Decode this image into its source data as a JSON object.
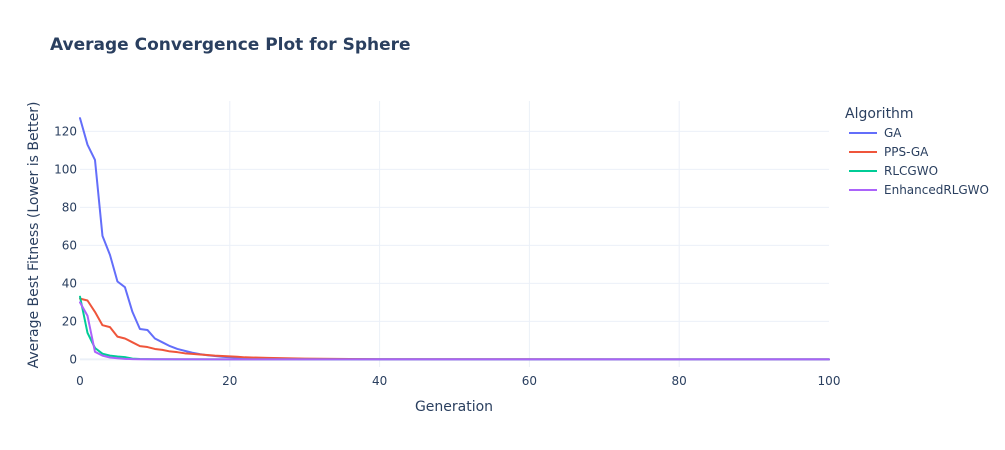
{
  "chart_data": {
    "type": "line",
    "title": "Average Convergence Plot for Sphere",
    "xlabel": "Generation",
    "ylabel": "Average Best Fitness (Lower is Better)",
    "xlim": [
      0,
      100
    ],
    "ylim": [
      -4,
      136
    ],
    "x_ticks": [
      0,
      20,
      40,
      60,
      80,
      100
    ],
    "y_ticks": [
      0,
      20,
      40,
      60,
      80,
      100,
      120
    ],
    "grid": true,
    "legend_title": "Algorithm",
    "legend_placement": "top-right-outside",
    "series": [
      {
        "name": "GA",
        "color": "#636efa",
        "points": [
          [
            0,
            127
          ],
          [
            1,
            113
          ],
          [
            2,
            105
          ],
          [
            3,
            65
          ],
          [
            4,
            55
          ],
          [
            5,
            41
          ],
          [
            6,
            38
          ],
          [
            7,
            25
          ],
          [
            8,
            16
          ],
          [
            9,
            15.5
          ],
          [
            10,
            11
          ],
          [
            11,
            9
          ],
          [
            12,
            7
          ],
          [
            13,
            5.5
          ],
          [
            14,
            4.5
          ],
          [
            15,
            3.5
          ],
          [
            16,
            2.8
          ],
          [
            17,
            2.2
          ],
          [
            18,
            1.8
          ],
          [
            19,
            1.4
          ],
          [
            20,
            1.1
          ],
          [
            22,
            0.7
          ],
          [
            25,
            0.4
          ],
          [
            30,
            0.15
          ],
          [
            40,
            0.05
          ],
          [
            60,
            0.02
          ],
          [
            100,
            0
          ]
        ]
      },
      {
        "name": "PPS-GA",
        "color": "#ef553b",
        "points": [
          [
            0,
            32
          ],
          [
            1,
            31
          ],
          [
            2,
            25
          ],
          [
            3,
            18
          ],
          [
            4,
            17
          ],
          [
            5,
            12
          ],
          [
            6,
            11
          ],
          [
            7,
            9
          ],
          [
            8,
            7
          ],
          [
            9,
            6.5
          ],
          [
            10,
            5.5
          ],
          [
            11,
            5
          ],
          [
            12,
            4.2
          ],
          [
            13,
            3.8
          ],
          [
            14,
            3.2
          ],
          [
            15,
            2.9
          ],
          [
            16,
            2.6
          ],
          [
            17,
            2.3
          ],
          [
            18,
            2.0
          ],
          [
            19,
            1.8
          ],
          [
            20,
            1.6
          ],
          [
            21,
            1.4
          ],
          [
            22,
            1.1
          ],
          [
            25,
            0.8
          ],
          [
            30,
            0.4
          ],
          [
            40,
            0.1
          ],
          [
            60,
            0.05
          ],
          [
            100,
            0.02
          ]
        ]
      },
      {
        "name": "RLCGWO",
        "color": "#00cc96",
        "points": [
          [
            0,
            33
          ],
          [
            1,
            14
          ],
          [
            2,
            6
          ],
          [
            3,
            3
          ],
          [
            4,
            2
          ],
          [
            5,
            1.5
          ],
          [
            6,
            1.2
          ],
          [
            7,
            0.4
          ],
          [
            8,
            0.2
          ],
          [
            10,
            0.1
          ],
          [
            20,
            0.02
          ],
          [
            100,
            0
          ]
        ]
      },
      {
        "name": "EnhancedRLGWO",
        "color": "#ab63fa",
        "points": [
          [
            0,
            30
          ],
          [
            1,
            23
          ],
          [
            2,
            4
          ],
          [
            3,
            2
          ],
          [
            4,
            1
          ],
          [
            5,
            0.6
          ],
          [
            6,
            0.3
          ],
          [
            7,
            0.15
          ],
          [
            8,
            0.1
          ],
          [
            10,
            0.05
          ],
          [
            20,
            0.01
          ],
          [
            100,
            0
          ]
        ]
      }
    ]
  }
}
